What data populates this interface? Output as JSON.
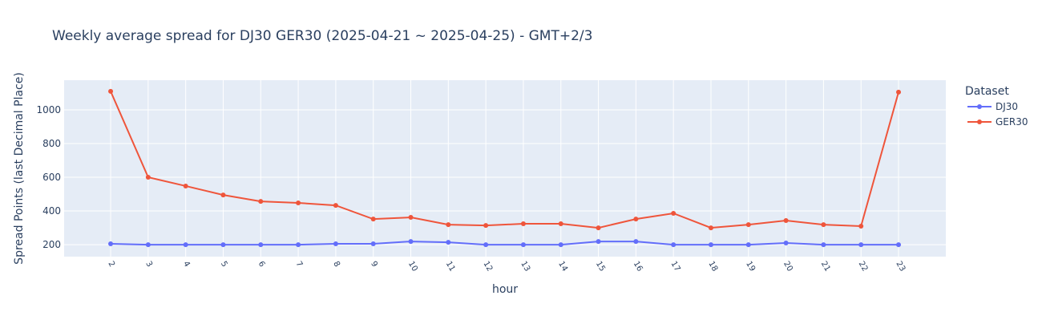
{
  "chart_data": {
    "type": "line",
    "title": "Weekly average spread for  DJ30 GER30 (2025-04-21 ~ 2025-04-25) - GMT+2/3",
    "x_label": "hour",
    "y_label": "Spread Points (last Decimal Place)",
    "legend_title": "Dataset",
    "x": [
      2,
      3,
      4,
      5,
      6,
      7,
      8,
      9,
      10,
      11,
      12,
      13,
      14,
      15,
      16,
      17,
      18,
      19,
      20,
      21,
      22,
      23
    ],
    "xlim": [
      0.76,
      24.26
    ],
    "xticks": [
      2,
      3,
      4,
      5,
      6,
      7,
      8,
      9,
      10,
      11,
      12,
      13,
      14,
      15,
      16,
      17,
      18,
      19,
      20,
      21,
      22,
      23
    ],
    "ylim": [
      129,
      1176
    ],
    "yticks": [
      200,
      400,
      600,
      800,
      1000
    ],
    "grid": true,
    "series": [
      {
        "name": "DJ30",
        "color": "#636efa",
        "values": [
          205,
          200,
          200,
          200,
          200,
          200,
          205,
          205,
          219,
          214,
          200,
          200,
          200,
          219,
          219,
          200,
          200,
          200,
          210,
          200,
          200,
          200
        ]
      },
      {
        "name": "GER30",
        "color": "#ef553b",
        "values": [
          1110,
          600,
          548,
          495,
          457,
          448,
          433,
          352,
          362,
          319,
          314,
          324,
          324,
          300,
          352,
          386,
          300,
          319,
          343,
          319,
          310,
          1105
        ]
      }
    ]
  }
}
